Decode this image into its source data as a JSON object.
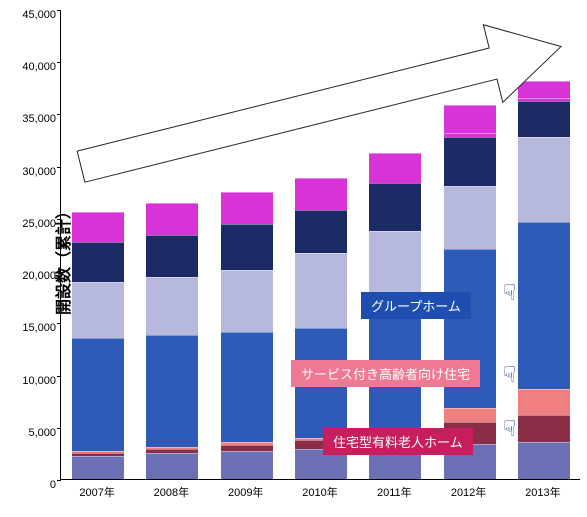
{
  "chart": {
    "type": "stacked-bar",
    "ylabel": "開設数（累計）",
    "label_fontsize": 18,
    "ylim": [
      0,
      45000
    ],
    "ytick_step": 5000,
    "yticks": [
      0,
      5000,
      10000,
      15000,
      20000,
      25000,
      30000,
      35000,
      40000,
      45000
    ],
    "tick_fontsize": 11,
    "background_color": "#ffffff",
    "bar_width_ratio": 0.7,
    "categories": [
      "2007年",
      "2008年",
      "2009年",
      "2010年",
      "2011年",
      "2012年",
      "2013年"
    ],
    "series_order": [
      "s1",
      "s2",
      "s3",
      "s4",
      "s5",
      "s6",
      "s7",
      "s8"
    ],
    "series_colors": {
      "s1": "#6b70b5",
      "s2": "#8a2e47",
      "s3": "#f08080",
      "s4": "#2e5bb8",
      "s5": "#b6b9dc",
      "s6": "#1c2a66",
      "s7": "#d733d7",
      "s8": "#d733d7"
    },
    "values": {
      "2007年": {
        "s1": 2200,
        "s2": 300,
        "s3": 200,
        "s4": 10800,
        "s5": 5400,
        "s6": 3800,
        "s7": 2900,
        "s8": 0
      },
      "2008年": {
        "s1": 2500,
        "s2": 400,
        "s3": 200,
        "s4": 10700,
        "s5": 5500,
        "s6": 4100,
        "s7": 3000,
        "s8": 0
      },
      "2009年": {
        "s1": 2700,
        "s2": 600,
        "s3": 250,
        "s4": 10550,
        "s5": 5900,
        "s6": 4400,
        "s7": 3100,
        "s8": 0
      },
      "2010年": {
        "s1": 2900,
        "s2": 800,
        "s3": 250,
        "s4": 10550,
        "s5": 7100,
        "s6": 4200,
        "s7": 3000,
        "s8": 0
      },
      "2011年": {
        "s1": 3300,
        "s2": 1300,
        "s3": 300,
        "s4": 11300,
        "s5": 7500,
        "s6": 4600,
        "s7": 2900,
        "s8": 0
      },
      "2012年": {
        "s1": 3400,
        "s2": 2100,
        "s3": 1300,
        "s4": 15200,
        "s5": 6100,
        "s6": 4600,
        "s7": 400,
        "s8": 2700
      },
      "2013年": {
        "s1": 3500,
        "s2": 2600,
        "s3": 2500,
        "s4": 16000,
        "s5": 8100,
        "s6": 3500,
        "s7": 300,
        "s8": 1600
      }
    },
    "arrow": {
      "start_x": 20,
      "start_y_val": 30000,
      "end_x": 500,
      "end_y_val": 41500,
      "stroke": "#222222",
      "stroke_width": 1,
      "fill": "#ffffff",
      "body_half": 16,
      "head_half": 40,
      "head_len": 70
    },
    "labels": [
      {
        "text": "グループホーム",
        "x": 300,
        "y_val": 18000,
        "bg": "#1e4fb0",
        "hand_x": 438,
        "hand_y_val": 18200
      },
      {
        "text": "サービス付き高齢者向け住宅",
        "x": 230,
        "y_val": 11500,
        "bg": "#f07893",
        "hand_x": 438,
        "hand_y_val": 10300
      },
      {
        "text": "住宅型有料老人ホーム",
        "x": 262,
        "y_val": 5000,
        "bg": "#c71f5e",
        "hand_x": 438,
        "hand_y_val": 5200
      }
    ]
  }
}
